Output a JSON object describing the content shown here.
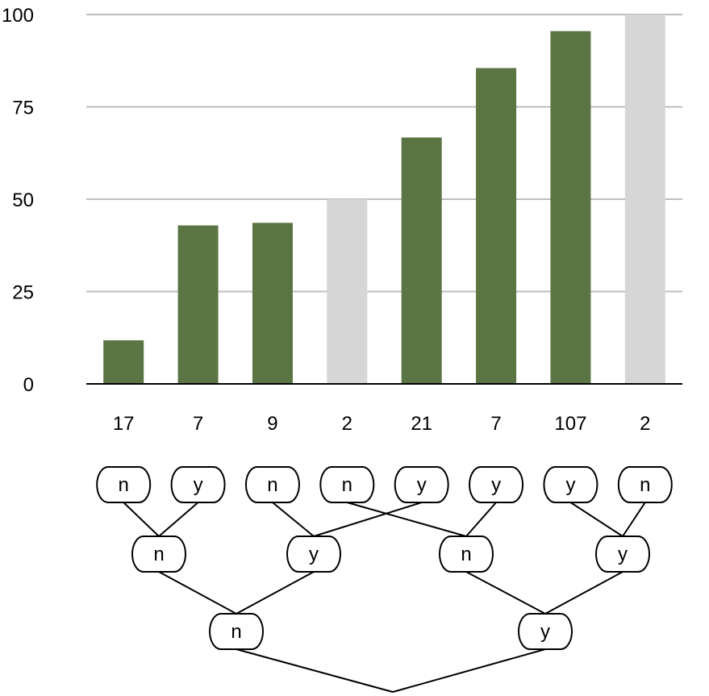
{
  "chart_data": {
    "type": "bar",
    "title": "",
    "xlabel": "",
    "ylabel": "",
    "ylim": [
      0,
      100
    ],
    "yticks": [
      0,
      25,
      50,
      75,
      100
    ],
    "grid": true,
    "categories": [
      "17",
      "7",
      "9",
      "2",
      "21",
      "7",
      "107",
      "2"
    ],
    "values": [
      11.8,
      42.9,
      43.6,
      50,
      66.7,
      85.5,
      95.5,
      100
    ],
    "bar_kind": [
      "data",
      "data",
      "data",
      "reference",
      "data",
      "data",
      "data",
      "reference"
    ],
    "colors": {
      "data": "#5a7543",
      "reference": "#d6d6d6"
    }
  },
  "tree": {
    "levels": [
      [
        "n",
        "y",
        "n",
        "n",
        "y",
        "y",
        "y",
        "n"
      ],
      [
        "n",
        "y",
        "n",
        "y"
      ],
      [
        "n",
        "y"
      ]
    ],
    "edges": [
      [
        [
          0,
          0
        ],
        [
          1,
          0
        ]
      ],
      [
        [
          0,
          1
        ],
        [
          1,
          0
        ]
      ],
      [
        [
          0,
          2
        ],
        [
          1,
          1
        ]
      ],
      [
        [
          0,
          4
        ],
        [
          1,
          1
        ]
      ],
      [
        [
          0,
          3
        ],
        [
          1,
          2
        ]
      ],
      [
        [
          0,
          5
        ],
        [
          1,
          2
        ]
      ],
      [
        [
          0,
          6
        ],
        [
          1,
          3
        ]
      ],
      [
        [
          0,
          7
        ],
        [
          1,
          3
        ]
      ],
      [
        [
          1,
          0
        ],
        [
          2,
          0
        ]
      ],
      [
        [
          1,
          1
        ],
        [
          2,
          0
        ]
      ],
      [
        [
          1,
          2
        ],
        [
          2,
          1
        ]
      ],
      [
        [
          1,
          3
        ],
        [
          2,
          1
        ]
      ]
    ]
  }
}
